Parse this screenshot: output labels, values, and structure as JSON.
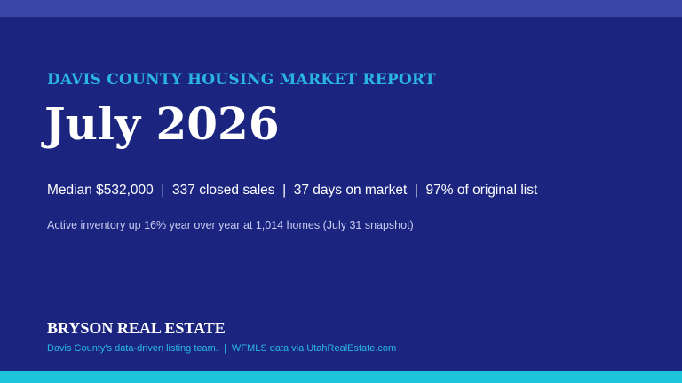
{
  "header": {
    "kicker": "DAVIS COUNTY HOUSING MARKET REPORT",
    "title": "July 2026"
  },
  "stats": {
    "line": "Median $532,000  |  337 closed sales  |  37 days on market  |  97% of original list",
    "note": "Active inventory up 16% year over year at 1,014 homes (July 31 snapshot)"
  },
  "footer": {
    "brand": "BRYSON REAL ESTATE",
    "tagline": "Davis County's data-driven listing team.  |  WFMLS data via UtahRealEstate.com"
  }
}
